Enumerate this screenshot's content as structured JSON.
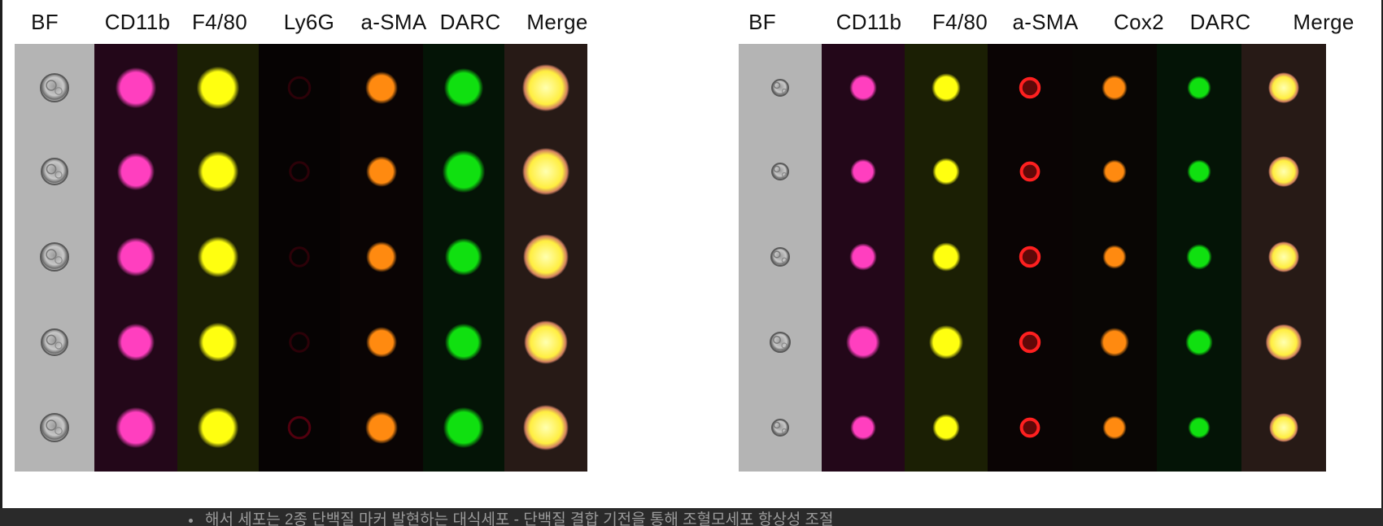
{
  "figure": {
    "left_panel": {
      "channels": [
        "BF",
        "CD11b",
        "F4/80",
        "Ly6G",
        "a-SMA",
        "DARC",
        "Merge"
      ],
      "rows": 5
    },
    "right_panel": {
      "channels": [
        "BF",
        "CD11b",
        "F4/80",
        "a-SMA",
        "Cox2",
        "DARC",
        "Merge"
      ],
      "rows": 5
    },
    "channel_colors": {
      "BF": "#bdbdbd",
      "CD11b": "#ff3fbf",
      "F4/80": "#ffff10",
      "Ly6G": "#5a0010",
      "a-SMA": "#ff2020",
      "Cox2": "#ff8a10",
      "DARC": "#10e010",
      "Merge": "#ffee40"
    }
  },
  "caption": {
    "text": "해서 세포는 2종 단백질 마커 발현하는 대식세포 - 단백질 결합 기전을 통해 조혈모세포 항상성 조절"
  }
}
